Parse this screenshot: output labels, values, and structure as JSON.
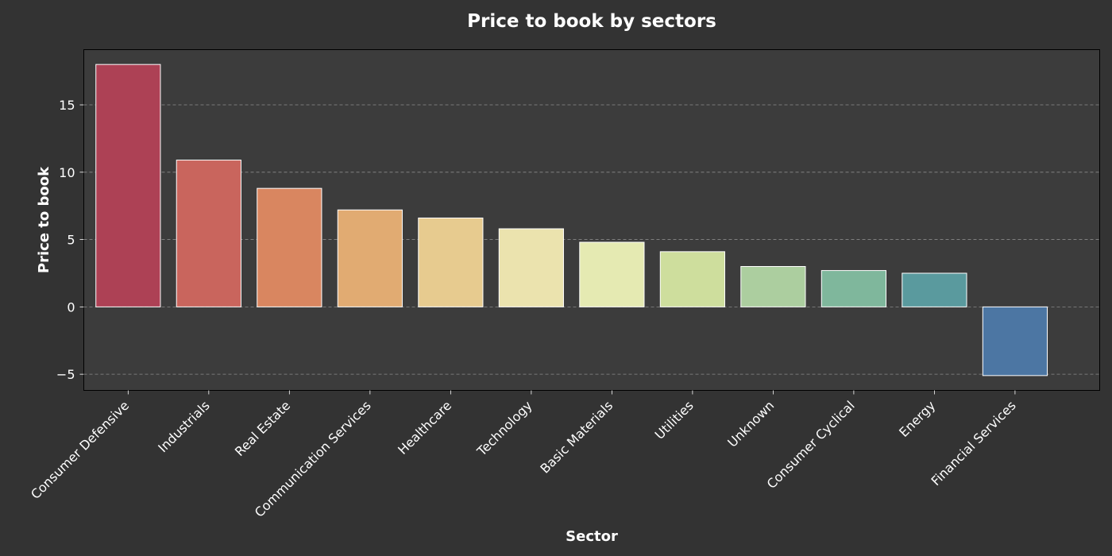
{
  "chart_data": {
    "type": "bar",
    "title": "Price to book by sectors",
    "xlabel": "Sector",
    "ylabel": "Price to book",
    "ylim": [
      -6.2,
      19.1
    ],
    "yticks": [
      -5,
      0,
      5,
      10,
      15
    ],
    "grid": "y-dashed",
    "categories": [
      "Consumer Defensive",
      "Industrials",
      "Real Estate",
      "Communication Services",
      "Healthcare",
      "Technology",
      "Basic Materials",
      "Utilities",
      "Unknown",
      "Consumer Cyclical",
      "Energy",
      "Financial Services"
    ],
    "values": [
      18.0,
      10.9,
      8.8,
      7.2,
      6.6,
      5.8,
      4.8,
      4.1,
      3.0,
      2.7,
      2.5,
      -5.1
    ],
    "colors": [
      "#ad4155",
      "#c9655d",
      "#d98660",
      "#e1ab72",
      "#e7cb8f",
      "#ebe3ae",
      "#e5eab2",
      "#cede9d",
      "#acce9f",
      "#7fb79c",
      "#5a9a9e",
      "#4c76a3"
    ]
  },
  "style": {
    "background": "#333333",
    "plot_background": "#3c3c3c",
    "text_color": "#ffffff",
    "grid_color": "#8a8a8a"
  }
}
